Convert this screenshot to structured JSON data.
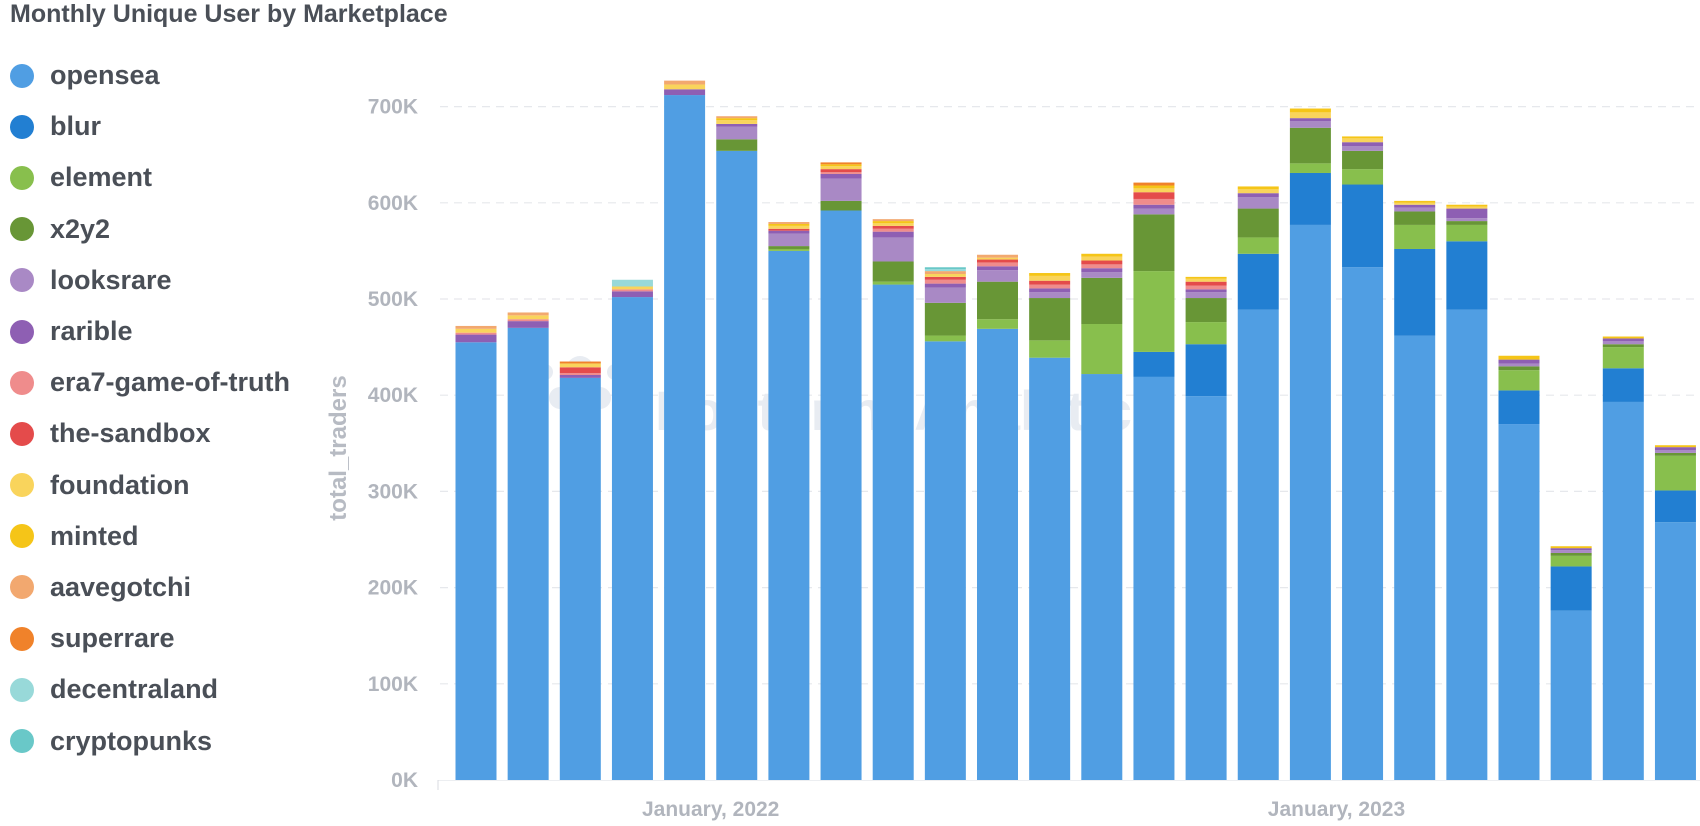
{
  "chart_data": {
    "type": "bar",
    "stacked": true,
    "title": "Monthly Unique User by Marketplace",
    "ylabel": "total_traders",
    "xlabel": "",
    "ylim": [
      0,
      730000
    ],
    "y_ticks": [
      "0K",
      "100K",
      "200K",
      "300K",
      "400K",
      "500K",
      "600K",
      "700K"
    ],
    "x_ticks": [
      "January, 2022",
      "January, 2023"
    ],
    "x_tick_positions": [
      4.5,
      16.5
    ],
    "grid": "horizontal dashed",
    "legend_position": "left",
    "watermark": "Footprint Analytics",
    "series": [
      {
        "name": "opensea",
        "color": "#509ee3",
        "values": [
          455000,
          470000,
          418000,
          502000,
          712000,
          654000,
          550000,
          592000,
          515000,
          456000,
          469000,
          439000,
          422000,
          419000,
          399000,
          489000,
          577000,
          533000,
          462000,
          489000,
          370000,
          176000,
          393000,
          268000
        ]
      },
      {
        "name": "blur",
        "color": "#227fd2",
        "values": [
          0,
          0,
          0,
          0,
          0,
          0,
          0,
          0,
          0,
          0,
          0,
          0,
          0,
          26000,
          54000,
          58000,
          54000,
          86000,
          90000,
          71000,
          35000,
          46000,
          35000,
          33000
        ]
      },
      {
        "name": "element",
        "color": "#88bf4d",
        "values": [
          0,
          0,
          0,
          0,
          0,
          0,
          2000,
          0,
          3000,
          6000,
          10000,
          18000,
          52000,
          84000,
          23000,
          17000,
          10000,
          16000,
          25000,
          17000,
          21000,
          11000,
          22000,
          36000
        ]
      },
      {
        "name": "x2y2",
        "color": "#689636",
        "values": [
          0,
          0,
          0,
          0,
          0,
          12000,
          3000,
          10000,
          21000,
          34000,
          39000,
          44000,
          48000,
          59000,
          25000,
          30000,
          37000,
          19000,
          14000,
          4000,
          4000,
          3000,
          3000,
          3000
        ]
      },
      {
        "name": "looksrare",
        "color": "#a989c5",
        "values": [
          0,
          0,
          0,
          0,
          0,
          13000,
          13000,
          23000,
          25000,
          16000,
          12000,
          6000,
          6000,
          6000,
          6000,
          12000,
          7000,
          5000,
          4000,
          3000,
          3000,
          3000,
          3000,
          3000
        ]
      },
      {
        "name": "rarible",
        "color": "#8e5fb3",
        "values": [
          8000,
          7000,
          3000,
          6000,
          6000,
          3000,
          3000,
          5000,
          6000,
          4000,
          4000,
          4000,
          4000,
          4000,
          3000,
          4000,
          3000,
          4000,
          3000,
          10000,
          4000,
          2000,
          3000,
          3000
        ]
      },
      {
        "name": "era7-game-of-truth",
        "color": "#ef8c8c",
        "values": [
          2000,
          2000,
          2000,
          2000,
          0,
          0,
          0,
          2000,
          3000,
          4000,
          4000,
          4000,
          4000,
          6000,
          4000,
          0,
          0,
          0,
          0,
          0,
          0,
          0,
          0,
          0
        ]
      },
      {
        "name": "the-sandbox",
        "color": "#e44b4b",
        "values": [
          0,
          0,
          6000,
          0,
          0,
          0,
          2000,
          3000,
          3000,
          3000,
          3000,
          4000,
          4000,
          7000,
          4000,
          0,
          0,
          0,
          0,
          0,
          0,
          0,
          0,
          0
        ]
      },
      {
        "name": "foundation",
        "color": "#f9d45c",
        "values": [
          4000,
          4000,
          4000,
          3000,
          5000,
          4000,
          3000,
          3000,
          3000,
          3000,
          2000,
          5000,
          4000,
          4000,
          3000,
          4000,
          6000,
          4000,
          2000,
          2000,
          0,
          0,
          0,
          0
        ]
      },
      {
        "name": "minted",
        "color": "#f5c518",
        "values": [
          0,
          0,
          0,
          0,
          0,
          2000,
          2000,
          2000,
          2000,
          0,
          0,
          3000,
          3000,
          3000,
          2000,
          3000,
          4000,
          2000,
          2000,
          2000,
          4000,
          2000,
          2000,
          2000
        ]
      },
      {
        "name": "aavegotchi",
        "color": "#f2a86f",
        "values": [
          3000,
          3000,
          0,
          0,
          4000,
          2000,
          2000,
          0,
          2000,
          3000,
          3000,
          0,
          0,
          0,
          0,
          0,
          0,
          0,
          0,
          0,
          0,
          0,
          0,
          0
        ]
      },
      {
        "name": "superrare",
        "color": "#f0822a",
        "values": [
          0,
          0,
          2000,
          0,
          0,
          0,
          0,
          2000,
          0,
          0,
          0,
          0,
          0,
          3000,
          0,
          0,
          0,
          0,
          0,
          0,
          0,
          0,
          0,
          0
        ]
      },
      {
        "name": "decentraland",
        "color": "#98d9d9",
        "values": [
          0,
          0,
          0,
          7000,
          0,
          0,
          0,
          0,
          0,
          2000,
          0,
          0,
          0,
          0,
          0,
          0,
          0,
          0,
          0,
          0,
          0,
          0,
          0,
          0
        ]
      },
      {
        "name": "cryptopunks",
        "color": "#69c8c8",
        "values": [
          0,
          0,
          0,
          0,
          0,
          0,
          0,
          0,
          0,
          2000,
          0,
          0,
          0,
          0,
          0,
          0,
          0,
          0,
          0,
          0,
          0,
          0,
          0,
          0
        ]
      }
    ]
  }
}
